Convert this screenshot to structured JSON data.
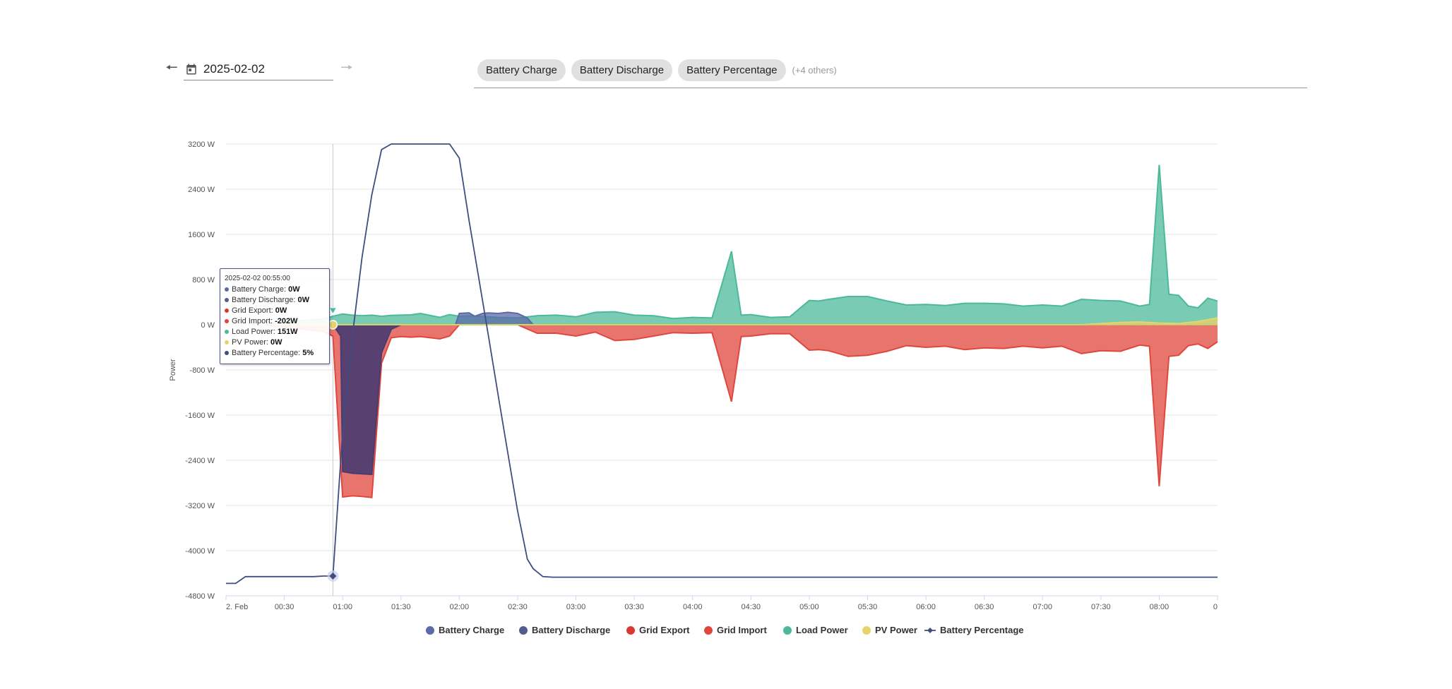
{
  "date_nav": {
    "date_value": "2025-02-02",
    "prev_icon": "arrow-left-icon",
    "next_icon": "arrow-right-icon",
    "calendar_icon": "calendar-icon"
  },
  "series_filter": {
    "chips": [
      "Battery Charge",
      "Battery Discharge",
      "Battery Percentage"
    ],
    "more_label": "(+4 others)"
  },
  "tooltip": {
    "date": "2025-02-02 00:55:00",
    "rows": [
      {
        "name": "Battery Charge",
        "value": "0W",
        "color": "#5b6aa8"
      },
      {
        "name": "Battery Discharge",
        "value": "0W",
        "color": "#535c8f"
      },
      {
        "name": "Grid Export",
        "value": "0W",
        "color": "#d93a2f"
      },
      {
        "name": "Grid Import",
        "value": "-202W",
        "color": "#e0473c"
      },
      {
        "name": "Load Power",
        "value": "151W",
        "color": "#4cb99a"
      },
      {
        "name": "PV Power",
        "value": "0W",
        "color": "#e8d36b"
      },
      {
        "name": "Battery Percentage",
        "value": "5%",
        "color": "#404d80"
      }
    ]
  },
  "chart_data": {
    "type": "area",
    "ylabel": "Power",
    "y_ticks": [
      "3200 W",
      "2400 W",
      "1600 W",
      "800 W",
      "0 W",
      "-800 W",
      "-1600 W",
      "-2400 W",
      "-3200 W",
      "-4000 W",
      "-4800 W"
    ],
    "ylim": [
      -4800,
      3200
    ],
    "x_ticks": [
      "2. Feb",
      "00:30",
      "01:00",
      "01:30",
      "02:00",
      "02:30",
      "03:00",
      "03:30",
      "04:00",
      "04:30",
      "05:00",
      "05:30",
      "06:00",
      "06:30",
      "07:00",
      "07:30",
      "08:00",
      "0"
    ],
    "x_range_minutes": [
      0,
      510
    ],
    "hover_time_minutes": 55,
    "legend": [
      "Battery Charge",
      "Battery Discharge",
      "Grid Export",
      "Grid Import",
      "Load Power",
      "PV Power",
      "Battery Percentage"
    ],
    "legend_position": "bottom",
    "grid": true,
    "series": [
      {
        "name": "Load Power",
        "color": "#4cb99a",
        "x": [
          0,
          20,
          40,
          50,
          55,
          60,
          65,
          70,
          75,
          80,
          85,
          90,
          95,
          100,
          110,
          115,
          120,
          125,
          130,
          140,
          150,
          160,
          170,
          180,
          190,
          200,
          210,
          220,
          230,
          240,
          250,
          260,
          265,
          270,
          280,
          290,
          300,
          305,
          310,
          320,
          330,
          340,
          350,
          360,
          370,
          380,
          390,
          400,
          410,
          420,
          430,
          440,
          450,
          460,
          470,
          475,
          480,
          485,
          490,
          495,
          500,
          505,
          510
        ],
        "y": [
          0,
          0,
          80,
          100,
          151,
          190,
          170,
          160,
          170,
          150,
          165,
          170,
          175,
          200,
          130,
          180,
          150,
          160,
          150,
          130,
          120,
          160,
          170,
          140,
          220,
          230,
          170,
          160,
          110,
          130,
          120,
          1300,
          170,
          180,
          130,
          140,
          430,
          420,
          450,
          500,
          500,
          420,
          350,
          360,
          340,
          380,
          380,
          370,
          330,
          350,
          330,
          450,
          430,
          420,
          330,
          360,
          2830,
          540,
          520,
          330,
          300,
          470,
          420
        ]
      },
      {
        "name": "Grid Import",
        "color": "#e0473c",
        "x": [
          0,
          20,
          40,
          50,
          55,
          60,
          65,
          70,
          75,
          80,
          85,
          90,
          95,
          100,
          110,
          115,
          120,
          125,
          130,
          140,
          150,
          160,
          170,
          180,
          190,
          200,
          210,
          220,
          230,
          240,
          250,
          260,
          265,
          270,
          280,
          290,
          300,
          305,
          310,
          320,
          330,
          340,
          350,
          360,
          370,
          380,
          390,
          400,
          410,
          420,
          430,
          440,
          450,
          460,
          470,
          475,
          480,
          485,
          490,
          495,
          500,
          505,
          510
        ],
        "y": [
          0,
          0,
          -80,
          -120,
          -202,
          -3050,
          -3030,
          -3040,
          -3060,
          -680,
          -230,
          -210,
          -220,
          -210,
          -250,
          -200,
          0,
          0,
          0,
          0,
          0,
          -150,
          -150,
          -200,
          -130,
          -280,
          -260,
          -200,
          -140,
          -150,
          -140,
          -1360,
          -210,
          -200,
          -160,
          -160,
          -450,
          -440,
          -460,
          -560,
          -540,
          -470,
          -370,
          -400,
          -380,
          -440,
          -410,
          -420,
          -380,
          -410,
          -380,
          -510,
          -460,
          -470,
          -360,
          -380,
          -2860,
          -560,
          -540,
          -370,
          -340,
          -420,
          -300
        ]
      },
      {
        "name": "Battery Discharge",
        "color": "#483c70",
        "x": [
          55,
          59,
          60,
          65,
          70,
          75,
          80,
          85,
          90
        ],
        "y": [
          0,
          -200,
          -2600,
          -2630,
          -2640,
          -2650,
          -500,
          -80,
          0
        ]
      },
      {
        "name": "Battery Charge",
        "color": "#5b6aa8",
        "x": [
          118,
          120,
          125,
          128,
          132,
          135,
          140,
          145,
          150,
          155,
          158
        ],
        "y": [
          0,
          200,
          210,
          150,
          200,
          210,
          200,
          220,
          200,
          120,
          0
        ]
      },
      {
        "name": "PV Power",
        "color": "#e8d36b",
        "x": [
          0,
          440,
          450,
          460,
          470,
          480,
          490,
          500,
          510
        ],
        "y": [
          0,
          0,
          20,
          40,
          50,
          30,
          20,
          60,
          120
        ]
      },
      {
        "name": "Battery Percentage",
        "color": "#404d80",
        "x": [
          0,
          5,
          10,
          15,
          20,
          30,
          40,
          45,
          50,
          55,
          60,
          65,
          70,
          75,
          80,
          85,
          90,
          95,
          100,
          105,
          110,
          115,
          120,
          125,
          130,
          135,
          140,
          145,
          150,
          155,
          158,
          163,
          168,
          510
        ],
        "y": [
          -4580,
          -4580,
          -4460,
          -4460,
          -4460,
          -4460,
          -4460,
          -4460,
          -4450,
          -4450,
          -1900,
          -200,
          1200,
          2300,
          3100,
          3200,
          3200,
          3200,
          3200,
          3200,
          3200,
          3200,
          2950,
          1850,
          830,
          -200,
          -1250,
          -2280,
          -3300,
          -4150,
          -4320,
          -4460,
          -4470,
          -4470
        ]
      }
    ]
  }
}
